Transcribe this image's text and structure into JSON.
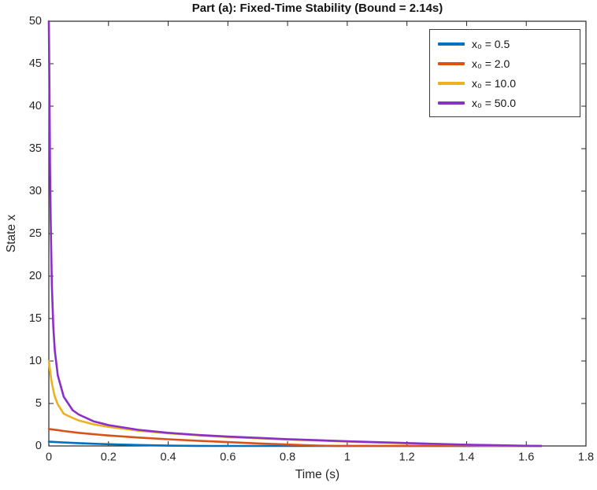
{
  "chart_data": {
    "type": "line",
    "title": "Part (a): Fixed-Time Stability (Bound = 2.14s)",
    "xlabel": "Time (s)",
    "ylabel": "State x",
    "xlim": [
      0,
      1.8
    ],
    "ylim": [
      0,
      50
    ],
    "xticks": [
      0,
      0.2,
      0.4,
      0.6,
      0.8,
      1,
      1.2,
      1.4,
      1.6,
      1.8
    ],
    "xtick_labels": [
      "0",
      "0.2",
      "0.4",
      "0.6",
      "0.8",
      "1",
      "1.2",
      "1.4",
      "1.6",
      "1.8"
    ],
    "yticks": [
      0,
      5,
      10,
      15,
      20,
      25,
      30,
      35,
      40,
      45,
      50
    ],
    "ytick_labels": [
      "0",
      "5",
      "10",
      "15",
      "20",
      "25",
      "30",
      "35",
      "40",
      "45",
      "50"
    ],
    "grid": false,
    "legend_position": "top-right",
    "axis_color": "#262626",
    "background": "#ffffff",
    "series": [
      {
        "name": "x₀ = 0.5",
        "x0": 0.5,
        "color": "#0072BD",
        "points": [
          [
            0,
            0.5
          ],
          [
            0.05,
            0.41
          ],
          [
            0.1,
            0.33
          ],
          [
            0.15,
            0.26
          ],
          [
            0.2,
            0.2
          ],
          [
            0.3,
            0.11
          ],
          [
            0.4,
            0.04
          ],
          [
            0.5,
            0.006
          ],
          [
            0.55,
            0
          ],
          [
            1.65,
            0
          ]
        ]
      },
      {
        "name": "x₀ = 2.0",
        "x0": 2.0,
        "color": "#D95319",
        "points": [
          [
            0,
            2
          ],
          [
            0.03,
            1.86
          ],
          [
            0.05,
            1.76
          ],
          [
            0.1,
            1.55
          ],
          [
            0.15,
            1.38
          ],
          [
            0.2,
            1.23
          ],
          [
            0.3,
            0.99
          ],
          [
            0.4,
            0.79
          ],
          [
            0.5,
            0.61
          ],
          [
            0.6,
            0.45
          ],
          [
            0.7,
            0.3
          ],
          [
            0.8,
            0.17
          ],
          [
            0.9,
            0.05
          ],
          [
            0.97,
            0
          ],
          [
            1.65,
            0
          ]
        ]
      },
      {
        "name": "x₀ = 10.0",
        "x0": 10.0,
        "color": "#EDB120",
        "points": [
          [
            0,
            10
          ],
          [
            0.005,
            8.6
          ],
          [
            0.01,
            7.4
          ],
          [
            0.02,
            5.8
          ],
          [
            0.03,
            4.9
          ],
          [
            0.05,
            3.8
          ],
          [
            0.08,
            3.3
          ],
          [
            0.1,
            3.0
          ],
          [
            0.15,
            2.55
          ],
          [
            0.2,
            2.25
          ],
          [
            0.3,
            1.8
          ],
          [
            0.4,
            1.48
          ],
          [
            0.5,
            1.25
          ],
          [
            0.6,
            1.05
          ],
          [
            0.8,
            0.76
          ],
          [
            1.0,
            0.51
          ],
          [
            1.2,
            0.31
          ],
          [
            1.4,
            0.13
          ],
          [
            1.5,
            0.06
          ],
          [
            1.6,
            0.01
          ],
          [
            1.65,
            0
          ]
        ]
      },
      {
        "name": "x₀ = 50.0",
        "x0": 50.0,
        "color": "#8B2FC9",
        "points": [
          [
            0,
            50
          ],
          [
            0.002,
            42
          ],
          [
            0.004,
            33
          ],
          [
            0.006,
            27
          ],
          [
            0.01,
            19
          ],
          [
            0.015,
            14
          ],
          [
            0.02,
            11.2
          ],
          [
            0.03,
            8.3
          ],
          [
            0.05,
            5.8
          ],
          [
            0.08,
            4.2
          ],
          [
            0.1,
            3.7
          ],
          [
            0.15,
            2.9
          ],
          [
            0.2,
            2.45
          ],
          [
            0.3,
            1.9
          ],
          [
            0.4,
            1.55
          ],
          [
            0.5,
            1.3
          ],
          [
            0.6,
            1.1
          ],
          [
            0.7,
            0.95
          ],
          [
            0.8,
            0.8
          ],
          [
            0.9,
            0.68
          ],
          [
            1.0,
            0.55
          ],
          [
            1.1,
            0.44
          ],
          [
            1.2,
            0.34
          ],
          [
            1.3,
            0.24
          ],
          [
            1.4,
            0.15
          ],
          [
            1.5,
            0.08
          ],
          [
            1.6,
            0.02
          ],
          [
            1.65,
            0
          ]
        ]
      }
    ]
  }
}
